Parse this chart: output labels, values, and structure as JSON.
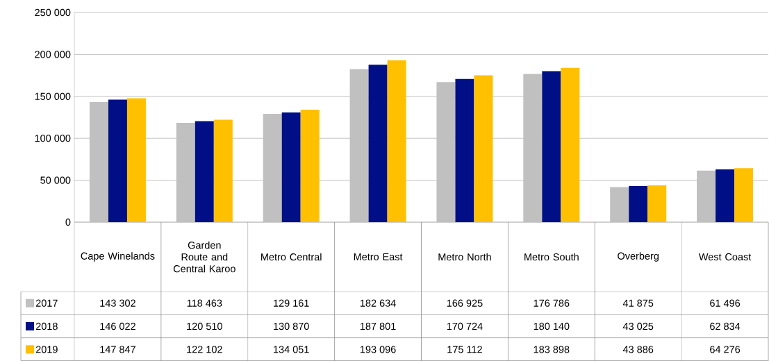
{
  "chart_data": {
    "type": "bar",
    "categories": [
      "Cape Winelands",
      "Garden Route and Central Karoo",
      "Metro Central",
      "Metro East",
      "Metro North",
      "Metro South",
      "Overberg",
      "West Coast"
    ],
    "series": [
      {
        "name": "2017",
        "color": "#c0c0c0",
        "values": [
          143302,
          118463,
          129161,
          182634,
          166925,
          176786,
          41875,
          61496
        ],
        "value_labels": [
          "143 302",
          "118 463",
          "129 161",
          "182 634",
          "166 925",
          "176 786",
          "41 875",
          "61 496"
        ]
      },
      {
        "name": "2018",
        "color": "#000f85",
        "values": [
          146022,
          120510,
          130870,
          187801,
          170724,
          180140,
          43025,
          62834
        ],
        "value_labels": [
          "146 022",
          "120 510",
          "130 870",
          "187 801",
          "170 724",
          "180 140",
          "43 025",
          "62 834"
        ]
      },
      {
        "name": "2019",
        "color": "#ffc000",
        "values": [
          147847,
          122102,
          134051,
          193096,
          175112,
          183898,
          43886,
          64276
        ],
        "value_labels": [
          "147 847",
          "122 102",
          "134 051",
          "193 096",
          "175 112",
          "183 898",
          "43 886",
          "64 276"
        ]
      }
    ],
    "ylim": [
      0,
      250000
    ],
    "yticks": [
      {
        "value": 0,
        "label": "0"
      },
      {
        "value": 50000,
        "label": "50 000"
      },
      {
        "value": 100000,
        "label": "100 000"
      },
      {
        "value": 150000,
        "label": "150 000"
      },
      {
        "value": 200000,
        "label": "200 000"
      },
      {
        "value": 250000,
        "label": "250 000"
      }
    ],
    "grid": "y",
    "legend": "bottom"
  }
}
